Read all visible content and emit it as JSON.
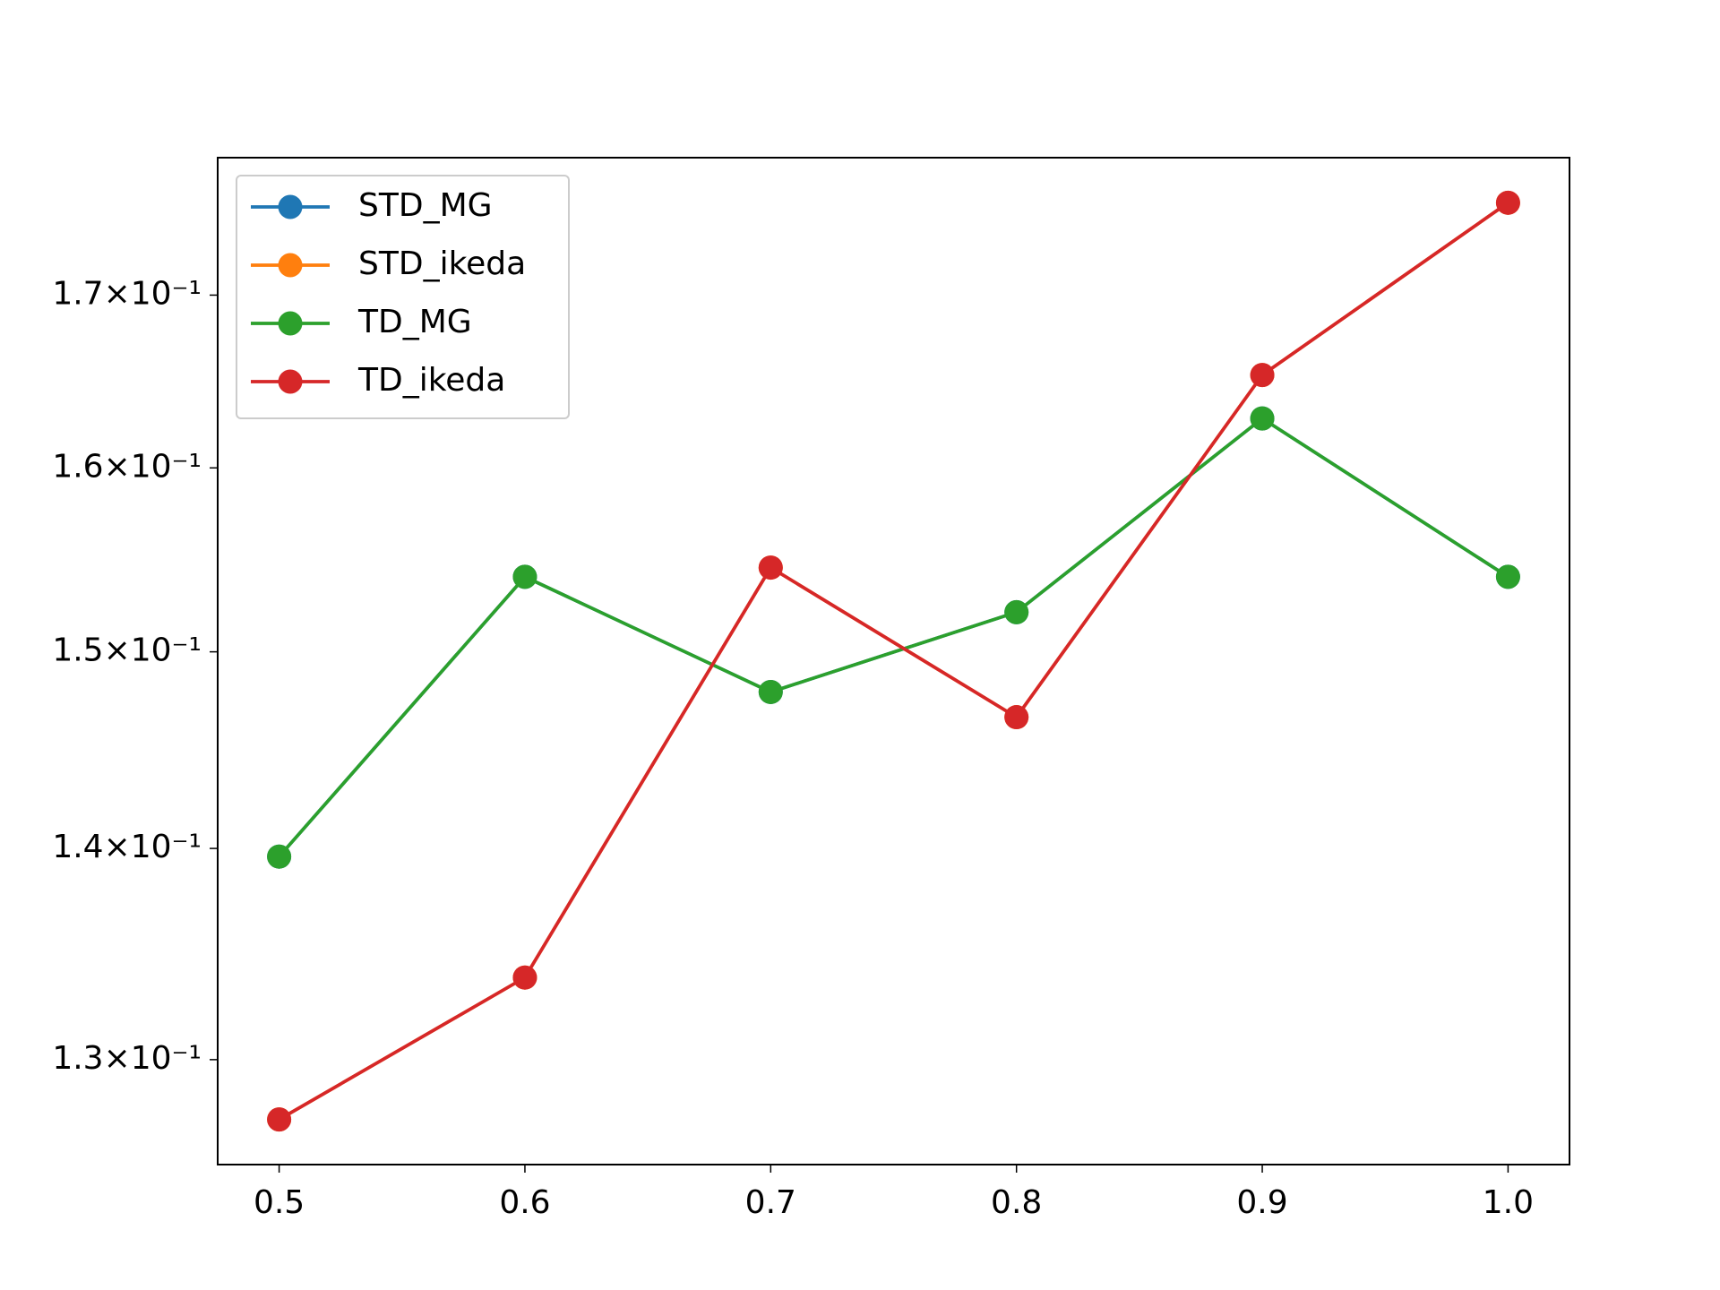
{
  "chart_data": {
    "type": "line",
    "x": [
      0.5,
      0.6,
      0.7,
      0.8,
      0.9,
      1.0
    ],
    "series": [
      {
        "name": "STD_MG",
        "color": "#1f77b4",
        "values": [
          0.1396,
          0.154,
          0.1479,
          0.1521,
          0.1628,
          0.154
        ]
      },
      {
        "name": "STD_ikeda",
        "color": "#ff7f0e",
        "values": [
          0.1273,
          0.1338,
          0.1545,
          0.1466,
          0.1653,
          0.1756
        ]
      },
      {
        "name": "TD_MG",
        "color": "#2ca02c",
        "values": [
          0.1396,
          0.154,
          0.1479,
          0.1521,
          0.1628,
          0.154
        ]
      },
      {
        "name": "TD_ikeda",
        "color": "#d62728",
        "values": [
          0.1273,
          0.1338,
          0.1545,
          0.1466,
          0.1653,
          0.1756
        ]
      }
    ],
    "xlim": [
      0.475,
      1.025
    ],
    "xticks": [
      0.5,
      0.6,
      0.7,
      0.8,
      0.9,
      {
        "value": 1.0,
        "label": "1.0"
      }
    ],
    "ylim": [
      0.1253,
      0.1784
    ],
    "yscale": "log",
    "yticks": [
      {
        "value": 0.13,
        "label": "1.3×10⁻¹"
      },
      {
        "value": 0.14,
        "label": "1.4×10⁻¹"
      },
      {
        "value": 0.15,
        "label": "1.5×10⁻¹"
      },
      {
        "value": 0.16,
        "label": "1.6×10⁻¹"
      },
      {
        "value": 0.17,
        "label": "1.7×10⁻¹"
      }
    ],
    "grid": false,
    "legend": "upper left"
  }
}
